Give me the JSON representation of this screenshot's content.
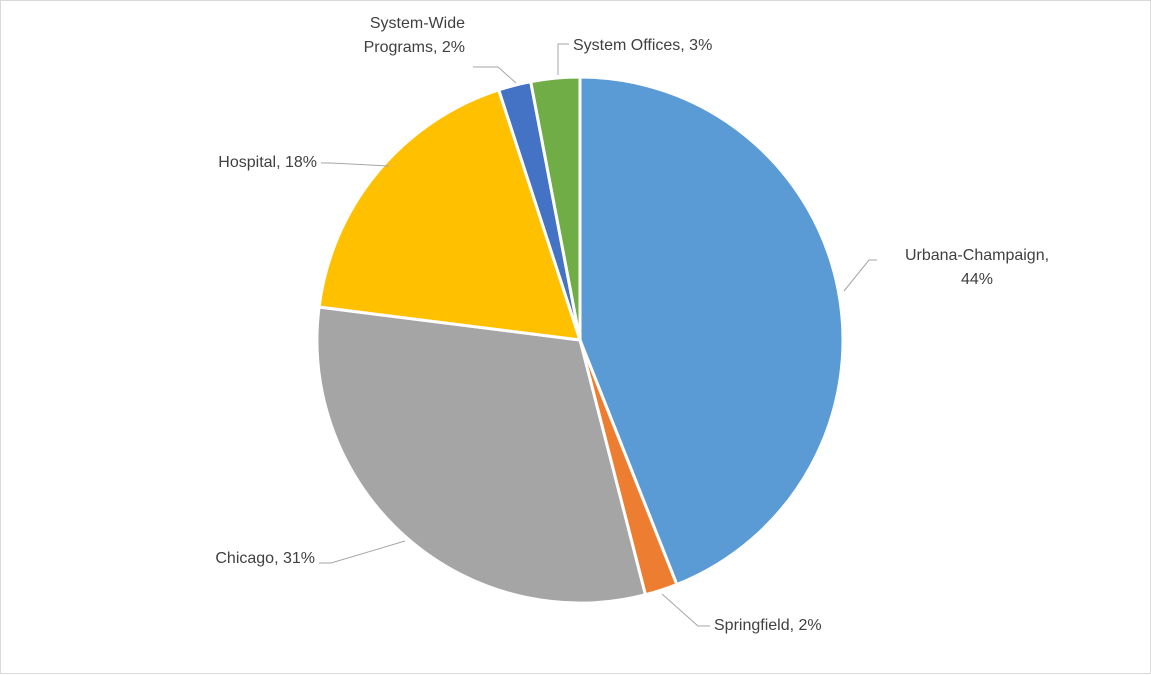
{
  "chart_data": {
    "type": "pie",
    "title": "",
    "start_angle_deg": 0,
    "direction": "clockwise",
    "slices": [
      {
        "category": "Urbana-Champaign",
        "value": 44,
        "label_lines": [
          "Urbana-Champaign,",
          "44%"
        ],
        "color": "#5b9bd5"
      },
      {
        "category": "Springfield",
        "value": 2,
        "label_lines": [
          "Springfield, 2%"
        ],
        "color": "#ed7d31"
      },
      {
        "category": "Chicago",
        "value": 31,
        "label_lines": [
          "Chicago, 31%"
        ],
        "color": "#a5a5a5"
      },
      {
        "category": "Hospital",
        "value": 18,
        "label_lines": [
          "Hospital, 18%"
        ],
        "color": "#ffc000"
      },
      {
        "category": "System-Wide Programs",
        "value": 2,
        "label_lines": [
          "System-Wide",
          "Programs, 2%"
        ],
        "color": "#4472c4"
      },
      {
        "category": "System Offices",
        "value": 3,
        "label_lines": [
          "System Offices, 3%"
        ],
        "color": "#70ad47"
      }
    ],
    "legend": "none",
    "data_labels": "category and percentage, outside with leader lines"
  }
}
